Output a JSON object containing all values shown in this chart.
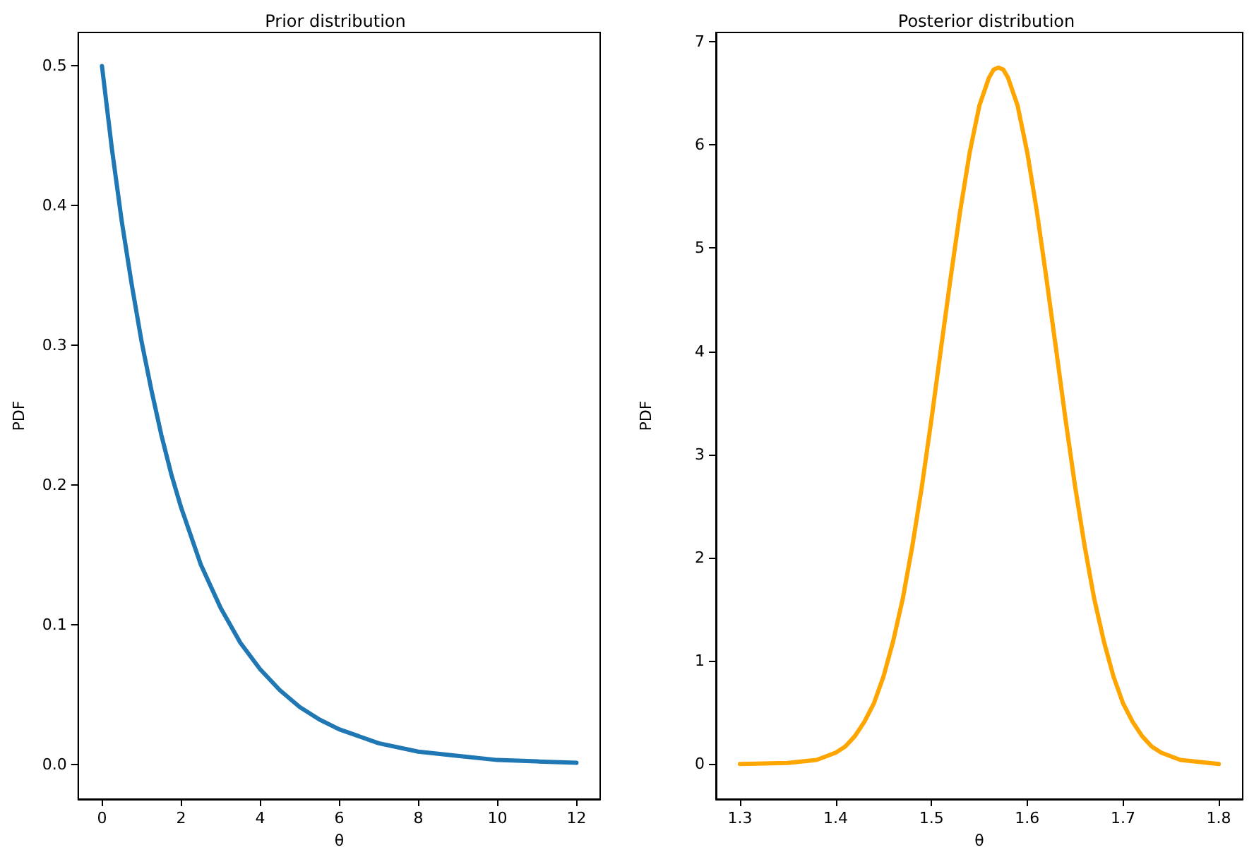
{
  "chart_data": [
    {
      "type": "line",
      "title": "Prior distribution",
      "xlabel": "θ",
      "ylabel": "PDF",
      "marker": "none",
      "line_style": "solid",
      "grid": false,
      "xlim": [
        -0.6,
        12.6
      ],
      "xticks": [
        0,
        2,
        4,
        6,
        8,
        10,
        12
      ],
      "ylim": [
        -0.025,
        0.524
      ],
      "yticks": [
        {
          "value": 0,
          "label": "0.0"
        },
        0.1,
        0.2,
        0.3,
        0.4,
        0.5
      ],
      "series": [
        {
          "color": "#1f77b4",
          "x": [
            0,
            0.25,
            0.5,
            0.75,
            1,
            1.25,
            1.5,
            1.75,
            2,
            2.5,
            3,
            3.5,
            4,
            4.5,
            5,
            5.5,
            6,
            7,
            8,
            9,
            10,
            11,
            12
          ],
          "values": [
            0.5,
            0.441,
            0.389,
            0.344,
            0.303,
            0.268,
            0.236,
            0.208,
            0.184,
            0.143,
            0.112,
            0.087,
            0.068,
            0.053,
            0.041,
            0.032,
            0.025,
            0.015,
            0.009,
            0.006,
            0.003,
            0.002,
            0.001
          ]
        }
      ]
    },
    {
      "type": "line",
      "title": "Posterior distribution",
      "xlabel": "θ",
      "ylabel": "PDF",
      "marker": "none",
      "line_style": "solid",
      "grid": false,
      "xlim": [
        1.275,
        1.825
      ],
      "xticks": [
        1.3,
        1.4,
        1.5,
        1.6,
        1.7,
        1.8
      ],
      "ylim": [
        -0.34,
        7.09
      ],
      "yticks": [
        0,
        1,
        2,
        3,
        4,
        5,
        6,
        7
      ],
      "series": [
        {
          "color": "#ffa500",
          "x": [
            1.3,
            1.35,
            1.38,
            1.4,
            1.41,
            1.42,
            1.43,
            1.44,
            1.45,
            1.46,
            1.47,
            1.48,
            1.49,
            1.5,
            1.51,
            1.52,
            1.53,
            1.54,
            1.55,
            1.56,
            1.565,
            1.57,
            1.575,
            1.58,
            1.59,
            1.6,
            1.61,
            1.62,
            1.63,
            1.64,
            1.65,
            1.66,
            1.67,
            1.68,
            1.69,
            1.7,
            1.71,
            1.72,
            1.73,
            1.74,
            1.76,
            1.8
          ],
          "values": [
            0,
            0.01,
            0.04,
            0.11,
            0.17,
            0.27,
            0.41,
            0.59,
            0.85,
            1.19,
            1.6,
            2.11,
            2.69,
            3.34,
            4.03,
            4.71,
            5.36,
            5.93,
            6.38,
            6.65,
            6.73,
            6.75,
            6.73,
            6.65,
            6.38,
            5.93,
            5.36,
            4.71,
            4.03,
            3.34,
            2.69,
            2.11,
            1.6,
            1.19,
            0.85,
            0.59,
            0.41,
            0.27,
            0.17,
            0.11,
            0.04,
            0
          ]
        }
      ]
    }
  ]
}
